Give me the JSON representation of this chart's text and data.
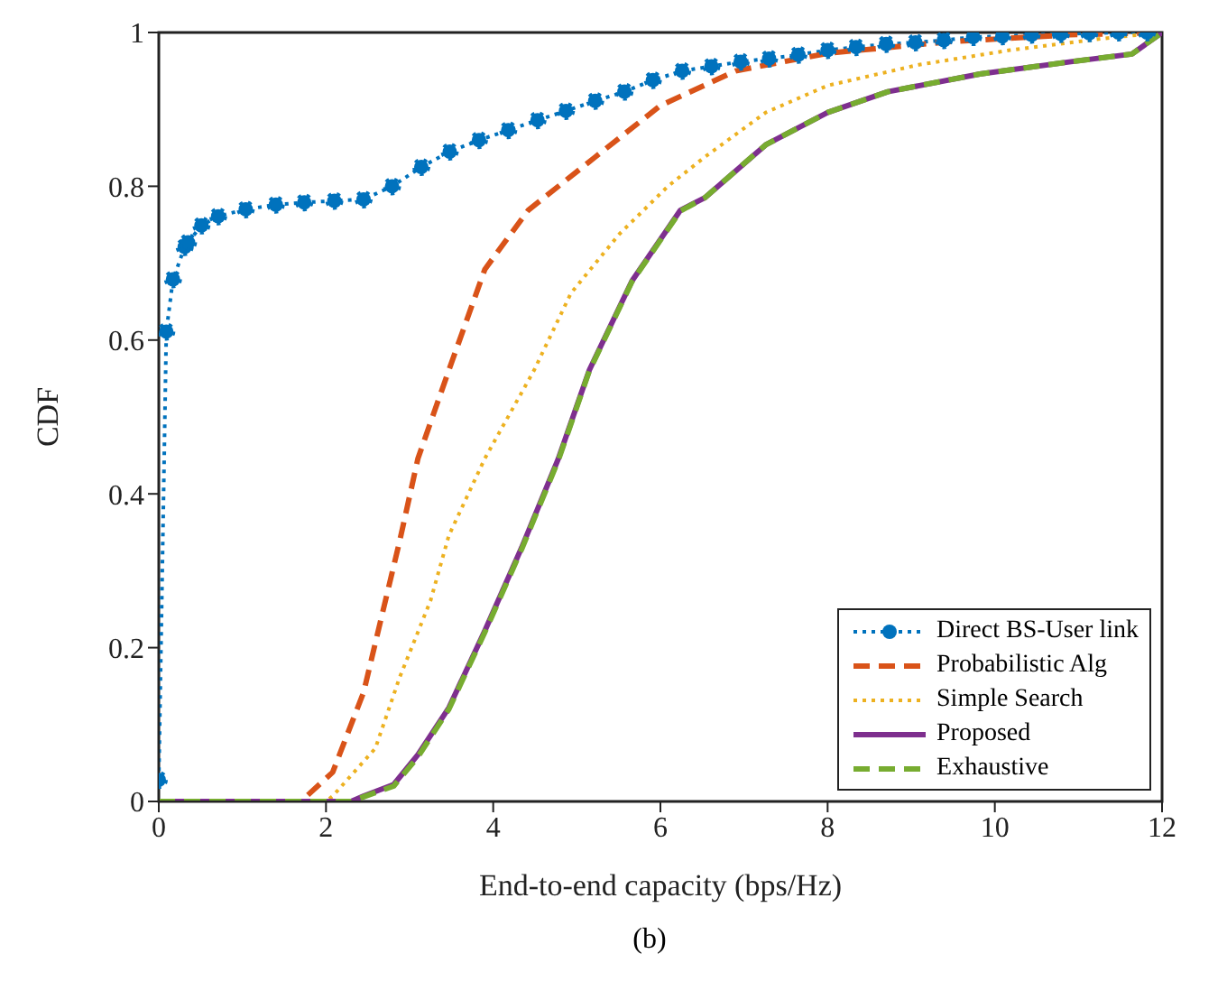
{
  "chart_data": {
    "type": "line",
    "xlabel": "End-to-end capacity (bps/Hz)",
    "ylabel": "CDF",
    "annotations": [
      "(b)"
    ],
    "xlim": [
      0,
      12
    ],
    "ylim": [
      0,
      1
    ],
    "xticks": [
      0,
      2,
      4,
      6,
      8,
      10,
      12
    ],
    "yticks": [
      0,
      0.2,
      0.4,
      0.6,
      0.8,
      1
    ],
    "legend": "bottom right",
    "series": [
      {
        "name": "Direct BS-User link",
        "color": "#0072bd",
        "marker": "circle",
        "line_style": "dotted",
        "x": [
          0,
          0.09,
          0.17,
          0.31,
          0.35,
          0.51,
          0.71,
          1.04,
          1.4,
          1.74,
          2.1,
          2.45,
          2.79,
          3.14,
          3.48,
          3.83,
          4.18,
          4.53,
          4.87,
          5.22,
          5.57,
          5.91,
          6.26,
          6.61,
          6.96,
          7.3,
          7.65,
          8.0,
          8.34,
          8.7,
          9.05,
          9.39,
          9.74,
          10.09,
          10.44,
          10.79,
          11.13,
          11.48,
          11.82
        ],
        "values": [
          0.028,
          0.611,
          0.679,
          0.721,
          0.727,
          0.749,
          0.761,
          0.77,
          0.776,
          0.779,
          0.781,
          0.783,
          0.8,
          0.825,
          0.845,
          0.86,
          0.873,
          0.886,
          0.898,
          0.911,
          0.923,
          0.938,
          0.95,
          0.956,
          0.962,
          0.966,
          0.971,
          0.977,
          0.981,
          0.985,
          0.987,
          0.99,
          0.994,
          0.995,
          0.997,
          0.998,
          0.999,
          1,
          1
        ]
      },
      {
        "name": "Probabilistic Alg",
        "color": "#d95319",
        "line_style": "dashed",
        "x": [
          0,
          1.7,
          2.08,
          2.45,
          2.66,
          2.88,
          3.1,
          3.47,
          3.9,
          4.42,
          5.22,
          6.0,
          6.9,
          8.0,
          9.45,
          10.9,
          12
        ],
        "values": [
          0,
          0,
          0.038,
          0.142,
          0.238,
          0.338,
          0.446,
          0.561,
          0.692,
          0.769,
          0.838,
          0.905,
          0.95,
          0.973,
          0.988,
          0.997,
          1
        ]
      },
      {
        "name": "Simple Search",
        "color": "#edb120",
        "line_style": "dotted",
        "x": [
          0,
          2.0,
          2.08,
          2.59,
          2.88,
          3.25,
          3.47,
          3.9,
          4.49,
          4.93,
          5.51,
          6.09,
          6.53,
          7.26,
          8.0,
          9.09,
          10.18,
          11.28,
          12
        ],
        "values": [
          0,
          0,
          0.007,
          0.069,
          0.161,
          0.261,
          0.346,
          0.446,
          0.561,
          0.661,
          0.738,
          0.8,
          0.838,
          0.896,
          0.931,
          0.958,
          0.977,
          0.992,
          1
        ]
      },
      {
        "name": "Proposed",
        "color": "#7e2f8e",
        "line_style": "solid",
        "x": [
          0,
          2.3,
          2.45,
          2.81,
          3.1,
          3.47,
          3.9,
          4.34,
          4.78,
          5.15,
          5.66,
          6.24,
          6.53,
          7.26,
          8.0,
          8.72,
          9.82,
          10.91,
          11.64,
          12
        ],
        "values": [
          0,
          0,
          0.007,
          0.022,
          0.061,
          0.122,
          0.222,
          0.33,
          0.446,
          0.561,
          0.677,
          0.769,
          0.785,
          0.854,
          0.896,
          0.923,
          0.946,
          0.962,
          0.972,
          1
        ]
      },
      {
        "name": "Exhaustive",
        "color": "#77ac30",
        "line_style": "dashed",
        "x": [
          0,
          2.3,
          2.45,
          2.81,
          3.1,
          3.47,
          3.9,
          4.34,
          4.78,
          5.15,
          5.66,
          6.24,
          6.53,
          7.26,
          8.0,
          8.72,
          9.82,
          10.91,
          11.64,
          12
        ],
        "values": [
          0,
          0,
          0.006,
          0.02,
          0.058,
          0.12,
          0.22,
          0.328,
          0.444,
          0.56,
          0.676,
          0.768,
          0.785,
          0.854,
          0.896,
          0.923,
          0.946,
          0.962,
          0.972,
          1
        ]
      }
    ]
  }
}
